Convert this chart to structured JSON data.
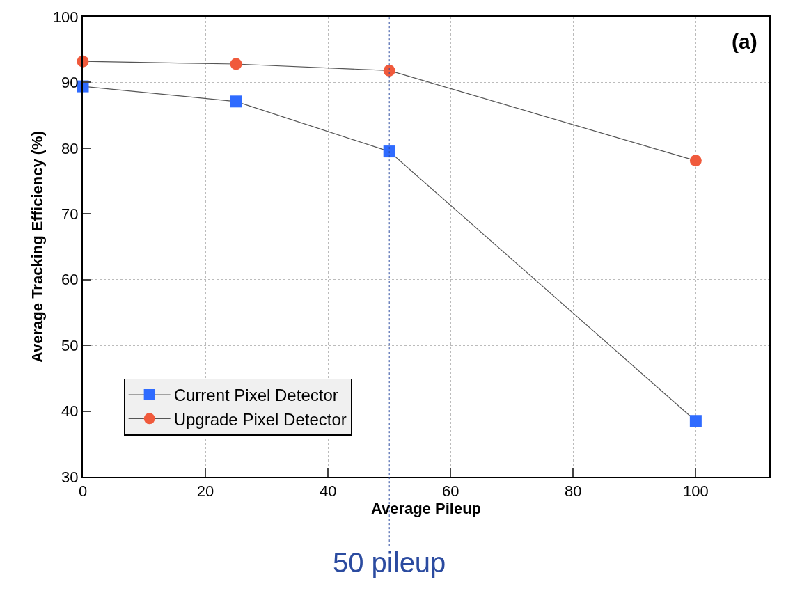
{
  "chart_data": {
    "type": "line",
    "xlabel": "Average Pileup",
    "ylabel": "Average Tracking Efficiency (%)",
    "x": [
      0,
      25,
      50,
      100
    ],
    "series": [
      {
        "name": "Current Pixel Detector",
        "color": "#2f6bff",
        "marker": "square",
        "values": [
          89.4,
          87.1,
          79.5,
          38.5
        ]
      },
      {
        "name": "Upgrade Pixel Detector",
        "color": "#f05a3c",
        "marker": "circle",
        "values": [
          93.2,
          92.8,
          91.8,
          78.1
        ]
      }
    ],
    "xlim": [
      0,
      112
    ],
    "xticks": [
      0,
      20,
      40,
      60,
      80,
      100
    ],
    "ylim": [
      30,
      100
    ],
    "yticks": [
      30,
      40,
      50,
      60,
      70,
      80,
      90,
      100
    ],
    "grid": true,
    "legend": "bottom left",
    "ref_lines": [
      {
        "axis": "x",
        "value": 50,
        "label": "50 pileup",
        "color": "#2b4ba0",
        "line_style": "dotted"
      }
    ],
    "annotations": [
      "(a)"
    ]
  }
}
